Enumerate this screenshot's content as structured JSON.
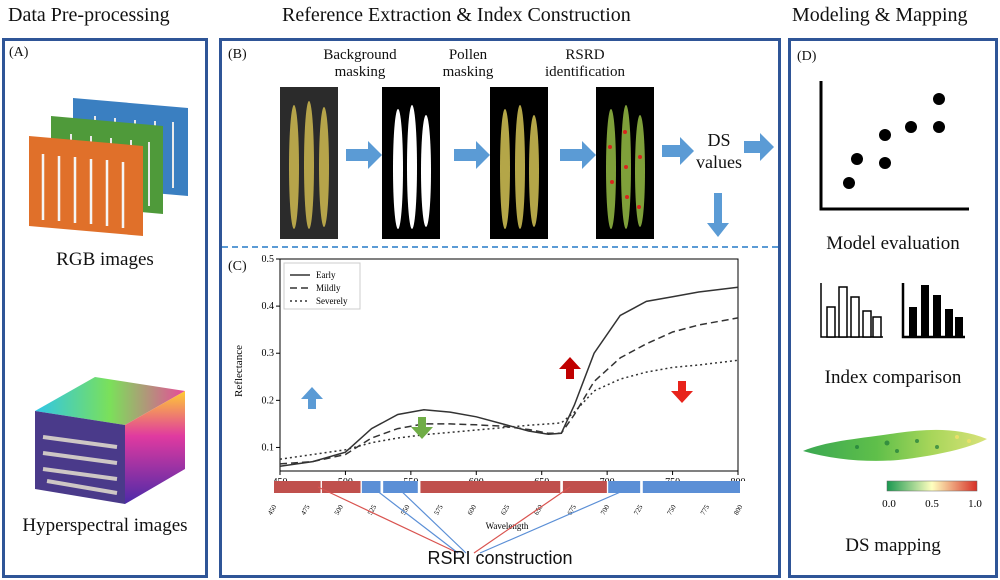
{
  "headers": {
    "a": "Data Pre-processing",
    "b": "Reference Extraction & Index Construction",
    "d": "Modeling & Mapping"
  },
  "panel_a": {
    "label": "(A)",
    "rgb_caption": "RGB images",
    "hsi_caption": "Hyperspectral images"
  },
  "panel_b": {
    "label": "(B)",
    "step1": "Background masking",
    "step2": "Pollen masking",
    "step3": "RSRD identification",
    "ds_values": "DS values"
  },
  "panel_c": {
    "label": "(C)",
    "construction_caption": "RSRI construction",
    "band_axis_label": "Wavelength",
    "band_ticks": [
      "450",
      "475",
      "500",
      "525",
      "550",
      "575",
      "600",
      "625",
      "650",
      "675",
      "700",
      "725",
      "750",
      "775",
      "800"
    ]
  },
  "panel_d": {
    "label": "(D)",
    "model_eval": "Model evaluation",
    "index_comp": "Index comparison",
    "ds_mapping": "DS mapping",
    "colorbar_ticks": [
      "0.0",
      "0.5",
      "1.0"
    ]
  },
  "colors": {
    "panel_border": "#2f5597",
    "arrow_blue": "#5b9bd5",
    "band_red": "#c0504d",
    "band_blue": "#5b8fd6",
    "up_red": "#c00000",
    "down_red": "#e8231b",
    "down_green": "#70ad47"
  },
  "chart_data": {
    "type": "line",
    "xlabel": "",
    "ylabel": "Reflectance",
    "xlim": [
      450,
      800
    ],
    "ylim": [
      0.05,
      0.5
    ],
    "xticks": [
      450,
      500,
      550,
      600,
      650,
      700,
      750,
      800
    ],
    "yticks": [
      0.1,
      0.2,
      0.3,
      0.4,
      0.5
    ],
    "legend_position": "top-left",
    "x": [
      450,
      475,
      500,
      520,
      540,
      560,
      580,
      600,
      620,
      640,
      655,
      665,
      675,
      690,
      710,
      730,
      750,
      770,
      800
    ],
    "series": [
      {
        "name": "Early",
        "style": "solid",
        "values": [
          0.06,
          0.07,
          0.09,
          0.14,
          0.17,
          0.18,
          0.175,
          0.165,
          0.15,
          0.135,
          0.128,
          0.13,
          0.19,
          0.3,
          0.38,
          0.41,
          0.42,
          0.43,
          0.44
        ]
      },
      {
        "name": "Mildly",
        "style": "dashed",
        "values": [
          0.065,
          0.07,
          0.085,
          0.12,
          0.14,
          0.15,
          0.15,
          0.148,
          0.145,
          0.138,
          0.13,
          0.13,
          0.17,
          0.24,
          0.29,
          0.32,
          0.345,
          0.36,
          0.375
        ]
      },
      {
        "name": "Severely",
        "style": "dotted",
        "values": [
          0.075,
          0.085,
          0.095,
          0.11,
          0.12,
          0.127,
          0.132,
          0.137,
          0.142,
          0.147,
          0.15,
          0.152,
          0.175,
          0.22,
          0.245,
          0.26,
          0.27,
          0.275,
          0.285
        ]
      }
    ]
  }
}
